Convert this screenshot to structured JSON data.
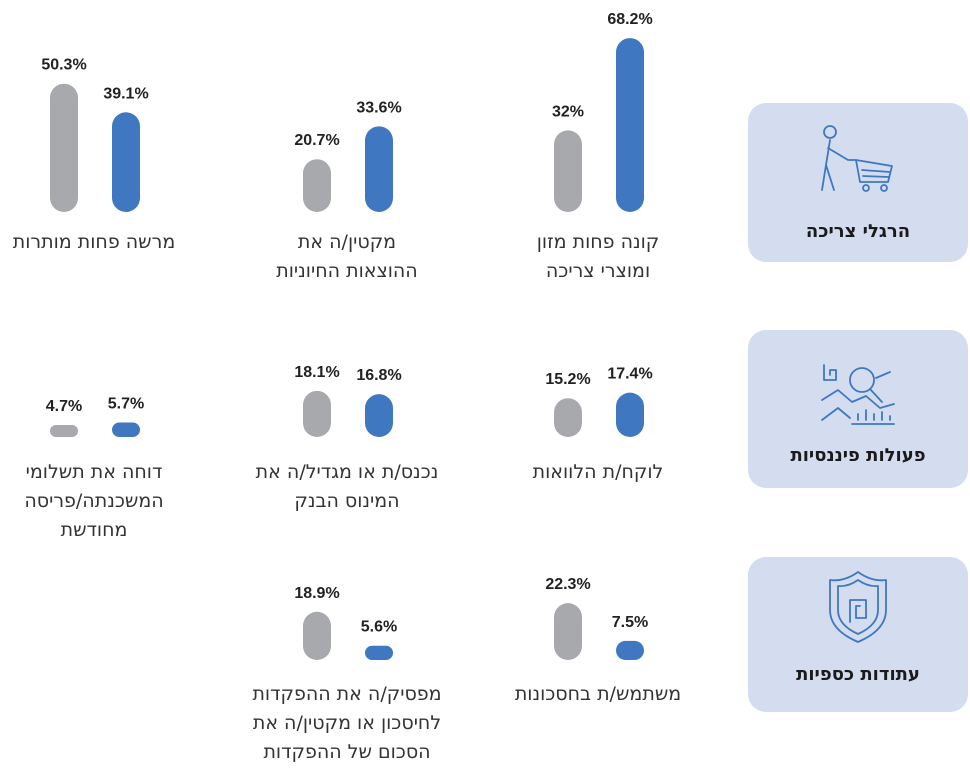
{
  "colors": [
    "#a7a9ac",
    "#3f78c0"
  ],
  "rows": [
    {
      "category": "הרגלי צריכה",
      "items": [
        {
          "label": [
            "קונה פחות מזון",
            "ומוצרי צריכה"
          ],
          "values": [
            32,
            68.2
          ],
          "value_labels": [
            "32%",
            "68.2%"
          ]
        },
        {
          "label": [
            "מקטין/ה את",
            "ההוצאות החיוניות"
          ],
          "values": [
            20.7,
            33.6
          ],
          "value_labels": [
            "20.7%",
            "33.6%"
          ]
        },
        {
          "label": [
            "מרשה פחות מותרות"
          ],
          "values": [
            50.3,
            39.1
          ],
          "value_labels": [
            "50.3%",
            "39.1%"
          ]
        }
      ]
    },
    {
      "category": "פעולות פיננסיות",
      "items": [
        {
          "label": [
            "לוקח/ת הלוואות"
          ],
          "values": [
            15.2,
            17.4
          ],
          "value_labels": [
            "15.2%",
            "17.4%"
          ]
        },
        {
          "label": [
            "נכנס/ת או מגדיל/ה את",
            "המינוס הבנק"
          ],
          "values": [
            18.1,
            16.8
          ],
          "value_labels": [
            "18.1%",
            "16.8%"
          ]
        },
        {
          "label": [
            "דוחה את תשלומי",
            "המשכנתה/פריסה",
            "מחודשת"
          ],
          "values": [
            4.7,
            5.7
          ],
          "value_labels": [
            "4.7%",
            "5.7%"
          ]
        }
      ]
    },
    {
      "category": "עתודות כספיות",
      "items": [
        {
          "label": [
            "משתמש/ת בחסכונות"
          ],
          "values": [
            22.3,
            7.5
          ],
          "value_labels": [
            "22.3%",
            "7.5%"
          ]
        },
        {
          "label": [
            "מפסיק/ה את ההפקדות",
            "לחיסכון או מקטין/ה את",
            "הסכום של ההפקדות"
          ],
          "values": [
            18.9,
            5.6
          ],
          "value_labels": [
            "18.9%",
            "5.6%"
          ]
        }
      ]
    }
  ]
}
